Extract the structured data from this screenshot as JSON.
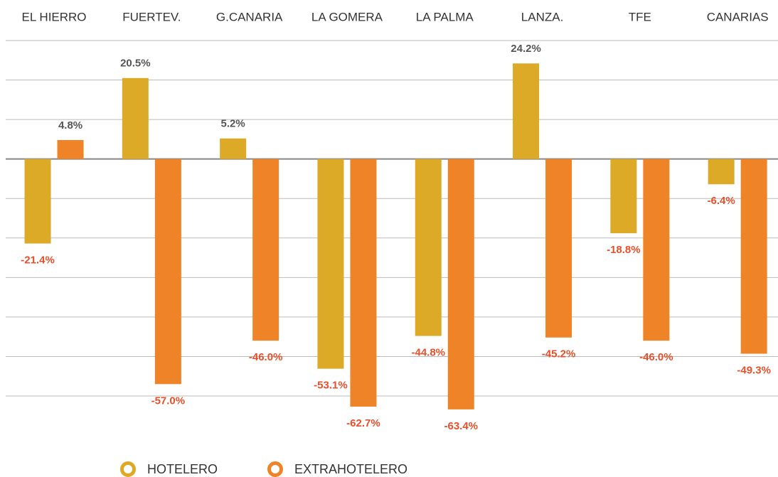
{
  "chart_data": {
    "type": "bar",
    "categories": [
      "EL HIERRO",
      "FUERTEV.",
      "G.CANARIA",
      "LA GOMERA",
      "LA PALMA",
      "LANZA.",
      "TFE",
      "CANARIAS"
    ],
    "series": [
      {
        "name": "HOTELERO",
        "color": "#dcaa26",
        "values": [
          -21.4,
          20.5,
          5.2,
          -53.1,
          -44.8,
          24.2,
          -18.8,
          -6.4
        ],
        "value_labels": [
          "-21.4%",
          "20.5%",
          "5.2%",
          "-53.1%",
          "-44.8%",
          "24.2%",
          "-18.8%",
          "-6.4%"
        ]
      },
      {
        "name": "EXTRAHOTELERO",
        "color": "#ee8427",
        "values": [
          4.8,
          -57.0,
          -46.0,
          -62.7,
          -63.4,
          -45.2,
          -46.0,
          -49.3
        ],
        "value_labels": [
          "4.8%",
          "-57.0%",
          "-46.0%",
          "-62.7%",
          "-63.4%",
          "-45.2%",
          "-46.0%",
          "-49.3%"
        ]
      }
    ],
    "ylim": [
      -70,
      30
    ],
    "yticks": [
      -60,
      -50,
      -40,
      -30,
      -20,
      -10,
      0,
      10,
      20,
      30
    ],
    "grid": true,
    "legend": "bottom"
  }
}
